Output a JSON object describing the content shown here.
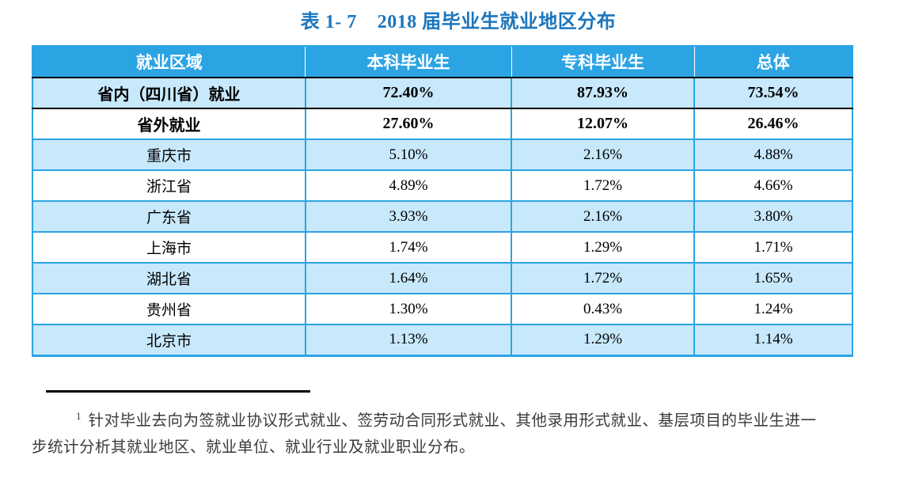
{
  "title": {
    "text": "表 1- 7    2018 届毕业生就业地区分布"
  },
  "table": {
    "columns": [
      "就业区域",
      "本科毕业生",
      "专科毕业生",
      "总体"
    ],
    "summary_rows": [
      {
        "region": "省内（四川省）就业",
        "undergrad": "72.40%",
        "college": "87.93%",
        "total": "73.54%"
      },
      {
        "region": "省外就业",
        "undergrad": "27.60%",
        "college": "12.07%",
        "total": "26.46%"
      }
    ],
    "rows": [
      {
        "region": "重庆市",
        "undergrad": "5.10%",
        "college": "2.16%",
        "total": "4.88%"
      },
      {
        "region": "浙江省",
        "undergrad": "4.89%",
        "college": "1.72%",
        "total": "4.66%"
      },
      {
        "region": "广东省",
        "undergrad": "3.93%",
        "college": "2.16%",
        "total": "3.80%"
      },
      {
        "region": "上海市",
        "undergrad": "1.74%",
        "college": "1.29%",
        "total": "1.71%"
      },
      {
        "region": "湖北省",
        "undergrad": "1.64%",
        "college": "1.72%",
        "total": "1.65%"
      },
      {
        "region": "贵州省",
        "undergrad": "1.30%",
        "college": "0.43%",
        "total": "1.24%"
      },
      {
        "region": "北京市",
        "undergrad": "1.13%",
        "college": "1.29%",
        "total": "1.14%"
      }
    ]
  },
  "footnote": {
    "marker": "1",
    "text": "针对毕业去向为签就业协议形式就业、签劳动合同形式就业、其他录用形式就业、基层项目的毕业生进一步统计分析其就业地区、就业单位、就业行业及就业职业分布。"
  },
  "colors": {
    "title_blue": "#1B76BD",
    "header_bg": "#2BA4E4",
    "row_alt_bg": "#C8E8FB",
    "border_blue": "#2BA4E4",
    "border_black": "#000000",
    "footnote_color": "#3A3A3A"
  }
}
